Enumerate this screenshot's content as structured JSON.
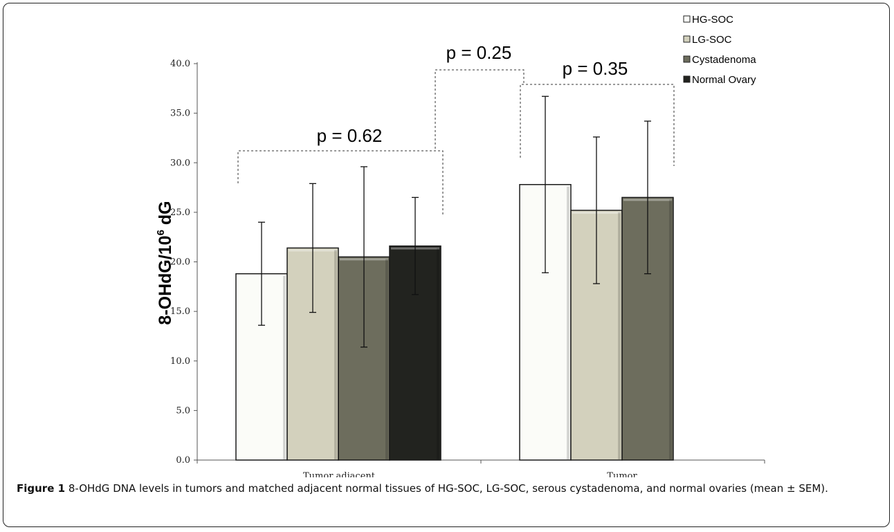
{
  "figure": {
    "caption_label": "Figure 1",
    "caption_text": " 8-OHdG DNA levels in tumors and matched adjacent normal tissues of HG-SOC, LG-SOC, serous cystadenoma, and normal ovaries (mean ± SEM)."
  },
  "chart_data": {
    "type": "bar",
    "title": "",
    "xlabel": "",
    "ylabel": "8-OHdG/10",
    "ylabel_sup": "6",
    "ylabel_tail": " dG",
    "ylim": [
      0,
      40
    ],
    "yticks": [
      0,
      5,
      10,
      15,
      20,
      25,
      30,
      35,
      40
    ],
    "ytick_labels": [
      "0.0",
      "5.0",
      "10.0",
      "15.0",
      "20.0",
      "25.0",
      "30.0",
      "35.0",
      "40.0"
    ],
    "grid": false,
    "legend_position": "top-right",
    "categories": [
      "Tumor adjacent",
      "Tumor"
    ],
    "series": [
      {
        "name": "HG-SOC",
        "color": "#fbfcf8",
        "values": [
          18.8,
          27.8
        ],
        "err_low": [
          13.6,
          18.9
        ],
        "err_high": [
          24.0,
          36.7
        ]
      },
      {
        "name": "LG-SOC",
        "color": "#d3d1bd",
        "values": [
          21.4,
          25.2
        ],
        "err_low": [
          14.9,
          17.8
        ],
        "err_high": [
          27.9,
          32.6
        ]
      },
      {
        "name": "Cystadenoma",
        "color": "#6d6d5d",
        "values": [
          20.5,
          26.5
        ],
        "err_low": [
          11.4,
          18.8
        ],
        "err_high": [
          29.6,
          34.2
        ]
      },
      {
        "name": "Normal Ovary",
        "color": "#22231f",
        "values": [
          21.6,
          null
        ],
        "err_low": [
          16.7,
          null
        ],
        "err_high": [
          26.5,
          null
        ]
      }
    ],
    "annotations": [
      {
        "text": "p = 0.62"
      },
      {
        "text": "p = 0.35"
      },
      {
        "text": "p = 0.25"
      }
    ]
  }
}
